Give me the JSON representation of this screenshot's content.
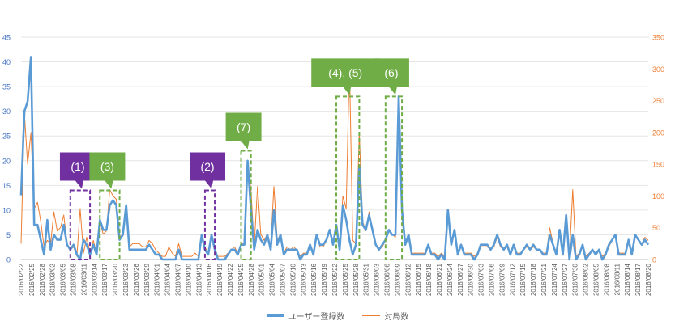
{
  "chart_data": {
    "type": "line",
    "title": "",
    "left_axis": {
      "min": 0,
      "max": 45,
      "step": 5
    },
    "right_axis": {
      "min": 0,
      "max": 350,
      "step": 50
    },
    "x_tick_labels": [
      "2016/02/22",
      "2016/02/25",
      "2016/02/28",
      "2016/03/02",
      "2016/03/05",
      "2016/03/08",
      "2016/03/11",
      "2016/03/14",
      "2016/03/17",
      "2016/03/20",
      "2016/03/23",
      "2016/03/26",
      "2016/03/29",
      "2016/04/01",
      "2016/04/04",
      "2016/04/07",
      "2016/04/10",
      "2016/04/13",
      "2016/04/16",
      "2016/04/19",
      "2016/04/22",
      "2016/04/25",
      "2016/04/28",
      "2016/05/01",
      "2016/05/04",
      "2016/05/07",
      "2016/05/10",
      "2016/05/13",
      "2016/05/16",
      "2016/05/19",
      "2016/05/22",
      "2016/05/25",
      "2016/05/28",
      "2016/05/31",
      "2016/06/03",
      "2016/06/06",
      "2016/06/09",
      "2016/06/12",
      "2016/06/15",
      "2016/06/18",
      "2016/06/21",
      "2016/06/24",
      "2016/06/27",
      "2016/06/30",
      "2016/07/03",
      "2016/07/06",
      "2016/07/09",
      "2016/07/12",
      "2016/07/15",
      "2016/07/18",
      "2016/07/21",
      "2016/07/24",
      "2016/07/27",
      "2016/07/30",
      "2016/08/02",
      "2016/08/05",
      "2016/08/08",
      "2016/08/11",
      "2016/08/14",
      "2016/08/17",
      "2016/08/20"
    ],
    "series": [
      {
        "name": "ユーザー登録数",
        "axis": "left",
        "color": "#5b9bd5",
        "values": [
          13,
          30,
          32,
          41,
          7,
          7,
          4,
          1,
          8,
          2,
          5,
          4,
          4,
          7,
          3,
          2,
          3,
          1,
          0,
          4,
          3,
          1,
          3,
          1,
          8,
          6,
          6,
          11,
          12,
          11,
          4,
          5,
          11,
          2,
          2,
          2,
          2,
          2,
          2,
          3,
          2,
          1,
          1,
          0,
          0,
          0,
          0,
          0,
          2,
          0,
          0,
          0,
          0,
          0,
          0,
          5,
          2,
          1,
          5,
          2,
          0,
          0,
          0,
          1,
          2,
          2,
          1,
          3,
          3,
          20,
          10,
          2,
          6,
          4,
          3,
          5,
          2,
          10,
          3,
          5,
          1,
          2,
          2,
          2,
          2,
          0,
          1,
          1,
          3,
          1,
          5,
          3,
          3,
          4,
          6,
          3,
          7,
          2,
          11,
          8,
          4,
          1,
          3,
          19,
          7,
          6,
          9,
          6,
          3,
          2,
          3,
          4,
          6,
          5,
          5,
          33,
          10,
          3,
          5,
          1,
          1,
          1,
          1,
          1,
          3,
          1,
          1,
          0,
          1,
          0,
          10,
          3,
          6,
          1,
          3,
          1,
          1,
          1,
          0,
          1,
          3,
          3,
          3,
          2,
          3,
          5,
          3,
          2,
          3,
          1,
          3,
          1,
          1,
          2,
          3,
          2,
          3,
          2,
          2,
          1,
          1,
          5,
          3,
          1,
          6,
          1,
          9,
          0,
          5,
          0,
          1,
          3,
          0,
          1,
          2,
          1,
          2,
          0,
          1,
          3,
          4,
          5,
          1,
          1,
          1,
          4,
          1,
          5,
          4,
          3,
          4,
          3
        ]
      },
      {
        "name": "対局数",
        "axis": "right",
        "color": "#ed7d31",
        "values": [
          25,
          230,
          150,
          200,
          80,
          90,
          60,
          20,
          30,
          25,
          75,
          45,
          50,
          70,
          25,
          15,
          20,
          5,
          80,
          10,
          35,
          10,
          30,
          10,
          60,
          40,
          45,
          110,
          100,
          95,
          35,
          40,
          80,
          20,
          25,
          25,
          25,
          20,
          20,
          30,
          25,
          15,
          10,
          5,
          5,
          20,
          10,
          5,
          25,
          5,
          5,
          5,
          5,
          10,
          5,
          40,
          20,
          10,
          35,
          15,
          5,
          5,
          5,
          10,
          15,
          20,
          10,
          25,
          25,
          145,
          110,
          20,
          115,
          40,
          30,
          40,
          20,
          115,
          30,
          40,
          10,
          20,
          15,
          20,
          15,
          5,
          10,
          10,
          25,
          10,
          40,
          20,
          20,
          30,
          45,
          25,
          50,
          15,
          100,
          80,
          310,
          30,
          25,
          200,
          60,
          45,
          75,
          45,
          25,
          15,
          20,
          30,
          45,
          40,
          35,
          250,
          80,
          25,
          40,
          10,
          10,
          10,
          10,
          10,
          20,
          10,
          10,
          5,
          10,
          5,
          75,
          25,
          45,
          10,
          20,
          10,
          10,
          10,
          5,
          10,
          20,
          20,
          20,
          15,
          20,
          35,
          20,
          15,
          20,
          10,
          20,
          10,
          10,
          15,
          20,
          15,
          20,
          15,
          15,
          10,
          10,
          50,
          25,
          10,
          45,
          10,
          70,
          5,
          110,
          5,
          10,
          20,
          5,
          10,
          15,
          10,
          15,
          5,
          10,
          20,
          30,
          40,
          10,
          10,
          10,
          30,
          10,
          40,
          30,
          25,
          35,
          30
        ]
      }
    ],
    "legend": {
      "position": "bottom",
      "entries": [
        "ユーザー登録数",
        "対局数"
      ]
    },
    "annotations": [
      {
        "label": "(1)",
        "color": "#7030a0",
        "x_from_index": 15,
        "x_to_index": 21,
        "box_top_left_axis": 14
      },
      {
        "label": "(3)",
        "color": "#70ad47",
        "x_from_index": 24,
        "x_to_index": 30,
        "box_top_left_axis": 14
      },
      {
        "label": "(2)",
        "color": "#7030a0",
        "x_from_index": 56,
        "x_to_index": 59,
        "box_top_left_axis": 14
      },
      {
        "label": "(7)",
        "color": "#70ad47",
        "x_from_index": 67,
        "x_to_index": 70,
        "box_top_left_axis": 22
      },
      {
        "label": "(4), (5)",
        "color": "#70ad47",
        "x_from_index": 96,
        "x_to_index": 103,
        "box_top_left_axis": 33
      },
      {
        "label": "(6)",
        "color": "#70ad47",
        "x_from_index": 111,
        "x_to_index": 116,
        "box_top_left_axis": 33
      }
    ]
  }
}
